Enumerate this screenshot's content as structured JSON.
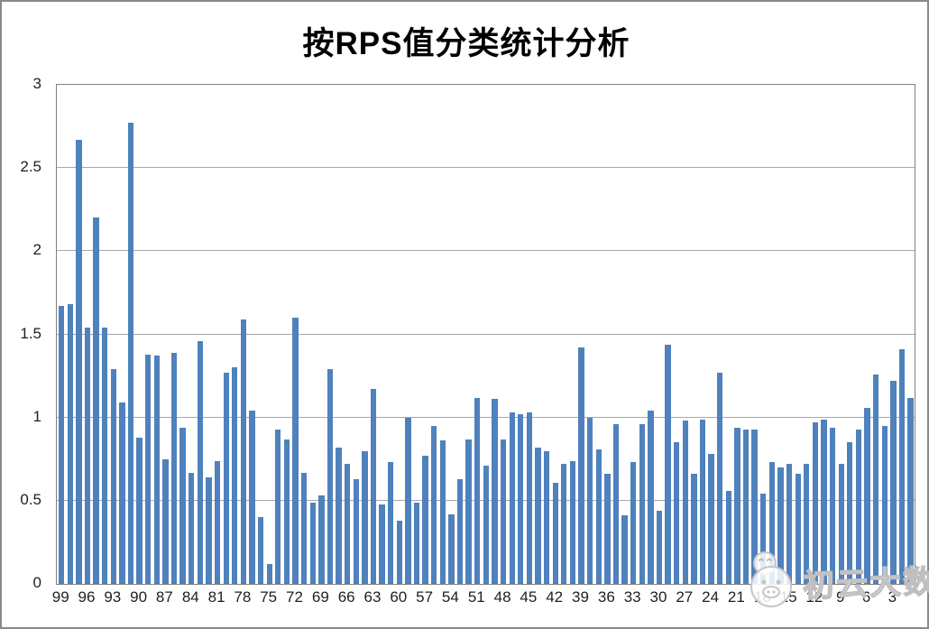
{
  "chart_data": {
    "type": "bar",
    "title": "按RPS值分类统计分析",
    "xlabel": "",
    "ylabel": "",
    "ylim": [
      0,
      3
    ],
    "yticks": [
      0,
      0.5,
      1,
      1.5,
      2,
      2.5,
      3
    ],
    "xtick_step": 3,
    "grid": "horizontal",
    "legend": "none",
    "bar_color": "#4f81bd",
    "gridline_color": "#a8a8a8",
    "axis_border_color": "#808080",
    "categories": [
      99,
      98,
      97,
      96,
      95,
      94,
      93,
      92,
      91,
      90,
      89,
      88,
      87,
      86,
      85,
      84,
      83,
      82,
      81,
      80,
      79,
      78,
      77,
      76,
      75,
      74,
      73,
      72,
      71,
      70,
      69,
      68,
      67,
      66,
      65,
      64,
      63,
      62,
      61,
      60,
      59,
      58,
      57,
      56,
      55,
      54,
      53,
      52,
      51,
      50,
      49,
      48,
      47,
      46,
      45,
      44,
      43,
      42,
      41,
      40,
      39,
      38,
      37,
      36,
      35,
      34,
      33,
      32,
      31,
      30,
      29,
      28,
      27,
      26,
      25,
      24,
      23,
      22,
      21,
      20,
      19,
      18,
      17,
      16,
      15,
      14,
      13,
      12,
      11,
      10,
      9,
      8,
      7,
      6,
      5,
      4,
      3,
      2,
      1
    ],
    "values": [
      1.67,
      1.68,
      2.67,
      1.54,
      2.2,
      1.54,
      1.29,
      1.09,
      2.77,
      0.88,
      1.38,
      1.37,
      0.75,
      1.39,
      0.94,
      0.67,
      1.46,
      0.64,
      0.74,
      1.27,
      1.3,
      1.59,
      1.04,
      0.4,
      0.12,
      0.93,
      0.87,
      1.6,
      0.67,
      0.49,
      0.53,
      1.29,
      0.82,
      0.72,
      0.63,
      0.8,
      1.17,
      0.48,
      0.73,
      0.38,
      1.0,
      0.49,
      0.77,
      0.95,
      0.86,
      0.42,
      0.63,
      0.87,
      1.12,
      0.71,
      1.11,
      0.87,
      1.03,
      1.02,
      1.03,
      0.82,
      0.8,
      0.61,
      0.72,
      0.74,
      1.42,
      1.0,
      0.81,
      0.66,
      0.96,
      0.41,
      0.73,
      0.96,
      1.04,
      0.44,
      1.44,
      0.85,
      0.98,
      0.66,
      0.99,
      0.78,
      1.27,
      0.56,
      0.94,
      0.93,
      0.93,
      0.54,
      0.73,
      0.7,
      0.72,
      0.66,
      0.72,
      0.97,
      0.99,
      0.94,
      0.72,
      0.85,
      0.93,
      1.06,
      1.26,
      0.95,
      1.22,
      1.41,
      1.12
    ]
  },
  "watermark": {
    "text": "初云大数据",
    "icon": "wechat-smiley-face-icon"
  }
}
